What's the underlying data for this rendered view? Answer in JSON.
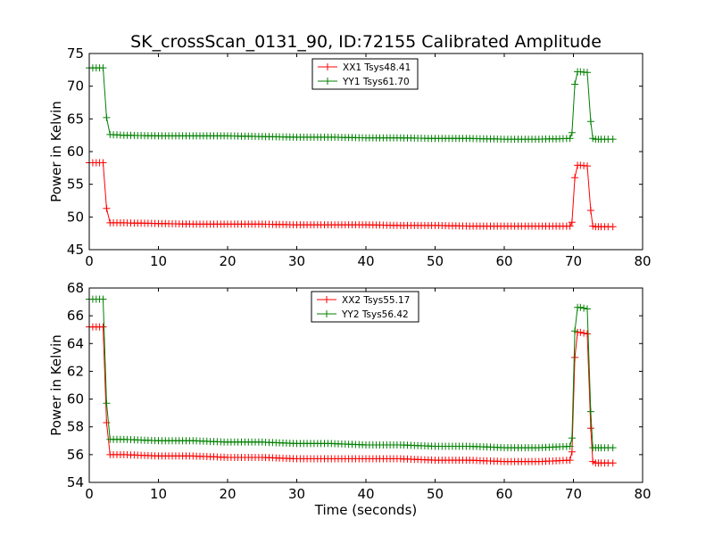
{
  "colors": {
    "xx": "#ff0000",
    "yy": "#008000",
    "axes": "#000000",
    "background": "#ffffff"
  },
  "chart_data": [
    {
      "type": "line",
      "title": "SK_crossScan_0131_90, ID:72155 Calibrated Amplitude",
      "xlabel": "",
      "ylabel": "Power in Kelvin",
      "xlim": [
        0,
        80
      ],
      "ylim": [
        45,
        75
      ],
      "xticks": [
        0,
        10,
        20,
        30,
        40,
        50,
        60,
        70,
        80
      ],
      "yticks": [
        45,
        50,
        55,
        60,
        65,
        70,
        75
      ],
      "grid": false,
      "legend_position": "upper-center",
      "series": [
        {
          "name": "XX1 Tsys48.41",
          "color": "#ff0000",
          "marker": "+",
          "x": [
            0,
            0.5,
            1,
            1.5,
            2,
            2.5,
            3,
            5,
            10,
            15,
            20,
            25,
            30,
            35,
            40,
            45,
            50,
            55,
            60,
            65,
            69.5,
            69.8,
            70.2,
            70.6,
            71,
            72,
            72.5,
            72.8,
            73.2,
            74,
            75,
            75.7
          ],
          "y": [
            58.3,
            58.3,
            58.3,
            58.3,
            58.3,
            51.3,
            49.1,
            49.1,
            49.0,
            48.9,
            48.9,
            48.9,
            48.8,
            48.8,
            48.8,
            48.7,
            48.7,
            48.6,
            48.6,
            48.6,
            48.6,
            49.2,
            56.0,
            57.9,
            57.9,
            57.8,
            51.0,
            48.6,
            48.5,
            48.5,
            48.5,
            48.5
          ]
        },
        {
          "name": "YY1 Tsys61.70",
          "color": "#008000",
          "marker": "+",
          "x": [
            0,
            0.5,
            1,
            1.5,
            2,
            2.5,
            3,
            5,
            10,
            15,
            20,
            25,
            30,
            35,
            40,
            45,
            50,
            55,
            60,
            65,
            69.5,
            69.8,
            70.2,
            70.6,
            71,
            72,
            72.5,
            72.8,
            73.2,
            74,
            75,
            75.7
          ],
          "y": [
            72.8,
            72.8,
            72.8,
            72.8,
            72.8,
            65.2,
            62.6,
            62.5,
            62.4,
            62.4,
            62.4,
            62.3,
            62.2,
            62.2,
            62.1,
            62.1,
            62.0,
            62.0,
            61.9,
            61.9,
            62.0,
            62.9,
            70.3,
            72.2,
            72.2,
            72.1,
            64.6,
            62.0,
            61.9,
            61.9,
            61.9,
            61.9
          ]
        }
      ]
    },
    {
      "type": "line",
      "title": "",
      "xlabel": "Time (seconds)",
      "ylabel": "Power in Kelvin",
      "xlim": [
        0,
        80
      ],
      "ylim": [
        54,
        68
      ],
      "xticks": [
        0,
        10,
        20,
        30,
        40,
        50,
        60,
        70,
        80
      ],
      "yticks": [
        54,
        56,
        58,
        60,
        62,
        64,
        66,
        68
      ],
      "grid": false,
      "legend_position": "upper-center",
      "series": [
        {
          "name": "XX2 Tsys55.17",
          "color": "#ff0000",
          "marker": "+",
          "x": [
            0,
            0.5,
            1,
            1.5,
            2,
            2.5,
            3,
            5,
            10,
            15,
            20,
            25,
            30,
            35,
            40,
            45,
            50,
            55,
            60,
            65,
            69.5,
            69.8,
            70.2,
            70.6,
            71,
            72,
            72.5,
            72.8,
            73.2,
            74,
            75,
            75.7
          ],
          "y": [
            65.2,
            65.2,
            65.2,
            65.2,
            65.2,
            58.3,
            56.0,
            56.0,
            55.9,
            55.9,
            55.8,
            55.8,
            55.7,
            55.7,
            55.7,
            55.7,
            55.6,
            55.6,
            55.5,
            55.5,
            55.6,
            56.2,
            63.0,
            64.8,
            64.8,
            64.7,
            57.9,
            55.5,
            55.4,
            55.4,
            55.4,
            55.4
          ]
        },
        {
          "name": "YY2 Tsys56.42",
          "color": "#008000",
          "marker": "+",
          "x": [
            0,
            0.5,
            1,
            1.5,
            2,
            2.5,
            3,
            5,
            10,
            15,
            20,
            25,
            30,
            35,
            40,
            45,
            50,
            55,
            60,
            65,
            69.5,
            69.8,
            70.2,
            70.6,
            71,
            72,
            72.5,
            72.8,
            73.2,
            74,
            75,
            75.7
          ],
          "y": [
            67.2,
            67.2,
            67.2,
            67.2,
            67.2,
            59.7,
            57.1,
            57.1,
            57.0,
            57.0,
            56.9,
            56.9,
            56.8,
            56.8,
            56.7,
            56.7,
            56.6,
            56.6,
            56.5,
            56.5,
            56.6,
            57.2,
            64.9,
            66.6,
            66.6,
            66.5,
            59.1,
            56.5,
            56.5,
            56.5,
            56.5,
            56.5
          ]
        }
      ]
    }
  ]
}
